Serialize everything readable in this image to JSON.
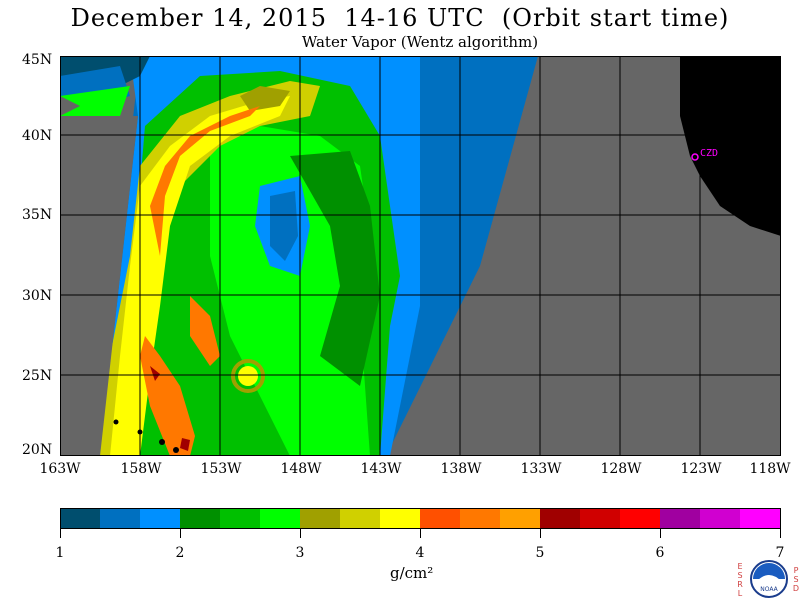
{
  "title": "December 14, 2015  14-16 UTC  (Orbit start time)",
  "subtitle": "Water Vapor (Wentz algorithm)",
  "map": {
    "lat_labels": [
      "45N",
      "40N",
      "35N",
      "30N",
      "25N",
      "20N"
    ],
    "lon_labels": [
      "163W",
      "158W",
      "153W",
      "148W",
      "143W",
      "138W",
      "133W",
      "128W",
      "123W",
      "118W"
    ],
    "station_label": "CZD",
    "colors": {
      "no_data": "#666666",
      "land": "#000000",
      "grid": "#000000",
      "station": "#ff00ff"
    }
  },
  "colorbar": {
    "colors": [
      "#004e6e",
      "#0070c0",
      "#0090ff",
      "#009000",
      "#00c000",
      "#00ff00",
      "#a0a000",
      "#d0d000",
      "#ffff00",
      "#ff5000",
      "#ff7800",
      "#ffa000",
      "#a00000",
      "#d00000",
      "#ff0000",
      "#a000a0",
      "#d000d0",
      "#ff00ff"
    ],
    "ticks": [
      "1",
      "2",
      "3",
      "4",
      "5",
      "6",
      "7"
    ],
    "units": "g/cm²"
  },
  "logo": {
    "left_letters": [
      "E",
      "S",
      "R",
      "L"
    ],
    "right_letters": [
      "P",
      "S",
      "D"
    ],
    "center_text": "NOAA"
  }
}
